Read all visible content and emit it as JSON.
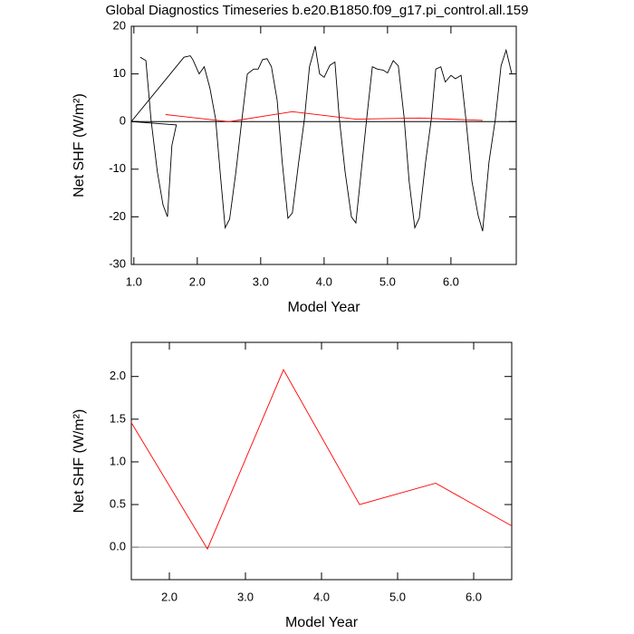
{
  "chart_data": [
    {
      "type": "line",
      "title": "Global Diagnostics Timeseries b.e20.B1850.f09_g17.pi_control.all.159",
      "xlabel": "Model Year",
      "ylabel": "Net SHF (W/m²)",
      "xlim": [
        0.96,
        7.03
      ],
      "ylim": [
        -30,
        20
      ],
      "xticks": [
        {
          "value": 1,
          "label": "1.0"
        },
        {
          "value": 2,
          "label": "2.0"
        },
        {
          "value": 3,
          "label": "3.0"
        },
        {
          "value": 4,
          "label": "4.0"
        },
        {
          "value": 5,
          "label": "5.0"
        },
        {
          "value": 6,
          "label": "6.0"
        }
      ],
      "yticks": [
        20,
        10,
        0,
        -10,
        -20,
        -30
      ],
      "refline": 0,
      "refline_color": "#000000",
      "series": [
        {
          "color": "#000000",
          "x": [
            1.1,
            1.19,
            1.27,
            1.37,
            1.46,
            1.53,
            1.6,
            1.67,
            0.96,
            1.79,
            1.89,
            1.93,
            2.03,
            2.11,
            2.2,
            2.29,
            2.36,
            2.44,
            2.51,
            2.61,
            2.7,
            2.79,
            2.89,
            2.96,
            3.03,
            3.1,
            3.17,
            3.26,
            3.34,
            3.43,
            3.5,
            3.6,
            3.69,
            3.77,
            3.86,
            3.93,
            4.0,
            4.09,
            4.17,
            4.24,
            4.33,
            4.43,
            4.5,
            4.6,
            4.67,
            4.76,
            4.84,
            4.93,
            5.0,
            5.09,
            5.17,
            5.26,
            5.34,
            5.43,
            5.5,
            5.6,
            5.69,
            5.76,
            5.84,
            5.91,
            6.0,
            6.07,
            6.16,
            6.24,
            6.33,
            6.43,
            6.5,
            6.6,
            6.7,
            6.79,
            6.87,
            6.96
          ],
          "values": [
            13.5,
            12.8,
            0.5,
            -10.5,
            -17.5,
            -20,
            -5,
            -0.7,
            0,
            13.5,
            13.8,
            13,
            10,
            11.5,
            7,
            0.5,
            -10.5,
            -22.3,
            -20.5,
            -10.5,
            0,
            10,
            11,
            11,
            13,
            13.2,
            11.5,
            4.5,
            -8.5,
            -20.3,
            -19.2,
            -8.5,
            0.5,
            11.5,
            15.8,
            10,
            9.3,
            11.8,
            12.5,
            0.5,
            -10.5,
            -20,
            -21.3,
            -8.5,
            0.5,
            11.5,
            11,
            10.8,
            10.2,
            12.8,
            11.7,
            1,
            -12.5,
            -22.3,
            -20.3,
            -8.5,
            0.5,
            11,
            11.5,
            8.3,
            9.7,
            9,
            9.7,
            0,
            -12.5,
            -19.8,
            -23,
            -8.5,
            0.5,
            11.7,
            15,
            10
          ]
        },
        {
          "color": "#ff0000",
          "x": [
            1.5,
            2.5,
            3.5,
            4.5,
            5.5,
            6.5
          ],
          "values": [
            1.46,
            -0.02,
            2.08,
            0.5,
            0.75,
            0.25
          ]
        }
      ]
    },
    {
      "type": "line",
      "xlabel": "Model Year",
      "ylabel": "Net SHF (W/m²)",
      "xlim": [
        1.5,
        6.5
      ],
      "ylim": [
        -0.38,
        2.4
      ],
      "xticks": [
        {
          "value": 2,
          "label": "2.0"
        },
        {
          "value": 3,
          "label": "3.0"
        },
        {
          "value": 4,
          "label": "4.0"
        },
        {
          "value": 5,
          "label": "5.0"
        },
        {
          "value": 6,
          "label": "6.0"
        }
      ],
      "yticks": [
        {
          "value": 0,
          "label": "0.0"
        },
        {
          "value": 0.5,
          "label": "0.5"
        },
        {
          "value": 1,
          "label": "1.0"
        },
        {
          "value": 1.5,
          "label": "1.5"
        },
        {
          "value": 2,
          "label": "2.0"
        }
      ],
      "refline": 0,
      "refline_color": "#999999",
      "series": [
        {
          "color": "#ff0000",
          "x": [
            1.5,
            2.5,
            3.5,
            4.5,
            5.5,
            6.5
          ],
          "values": [
            1.46,
            -0.02,
            2.08,
            0.5,
            0.75,
            0.25
          ]
        }
      ]
    }
  ]
}
